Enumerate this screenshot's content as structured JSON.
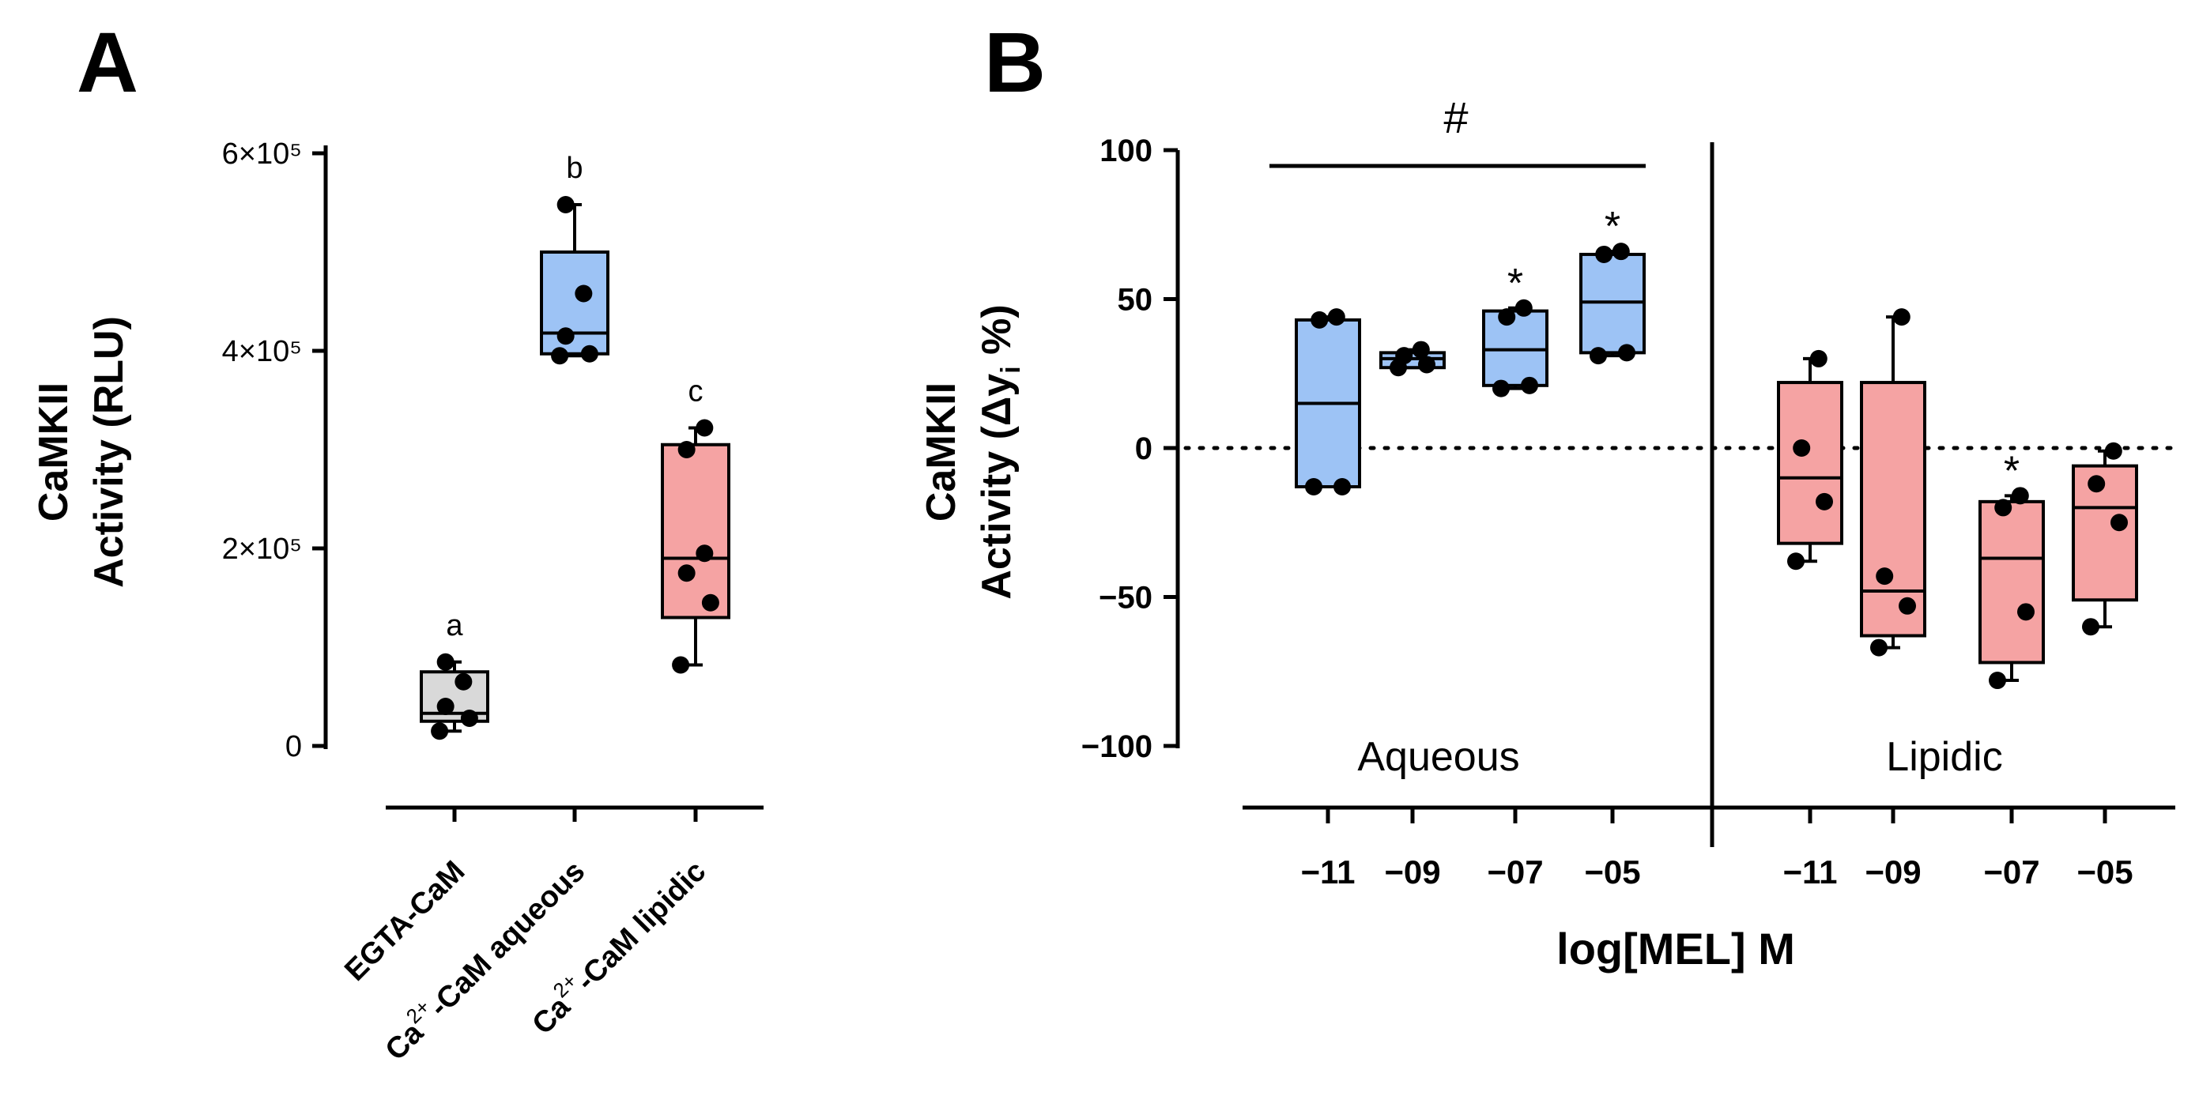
{
  "colors": {
    "gray": "#d9d9d9",
    "blue": "#9dc3f5",
    "red": "#f5a3a3",
    "ink": "#000000"
  },
  "chart_data": [
    {
      "panel": "A",
      "type": "box",
      "ylabel_line1": "CaMKII",
      "ylabel_line2": "Activity (RLU)",
      "ylim": [
        0,
        600000
      ],
      "yticks": [
        {
          "v": 0,
          "text": "0"
        },
        {
          "v": 200000,
          "text": "2×10⁵"
        },
        {
          "v": 400000,
          "text": "4×10⁵"
        },
        {
          "v": 600000,
          "text": "6×10⁵"
        }
      ],
      "categories": [
        {
          "label": "EGTA-CaM",
          "label_pre": "",
          "label_sup": "",
          "label_post": ""
        },
        {
          "label": "",
          "label_pre": "Ca",
          "label_sup": "2+",
          "label_post": "-CaM aqueous"
        },
        {
          "label": "",
          "label_pre": "Ca",
          "label_sup": "2+",
          "label_post": "-CaM lipidic"
        }
      ],
      "groups": [
        {
          "color": "gray",
          "letter": "a",
          "min": 15000,
          "q1": 25000,
          "median": 33000,
          "q3": 75000,
          "max": 85000,
          "points": [
            15000,
            28000,
            40000,
            65000,
            85000
          ]
        },
        {
          "color": "blue",
          "letter": "b",
          "min": 395000,
          "q1": 397000,
          "median": 418000,
          "q3": 500000,
          "max": 548000,
          "points": [
            395000,
            397000,
            415000,
            458000,
            548000
          ]
        },
        {
          "color": "red",
          "letter": "c",
          "min": 82000,
          "q1": 130000,
          "median": 190000,
          "q3": 305000,
          "max": 322000,
          "points": [
            82000,
            145000,
            175000,
            195000,
            300000,
            322000
          ]
        }
      ]
    },
    {
      "panel": "B",
      "type": "box",
      "ylabel_line1": "CaMKII",
      "ylabel_line2_pre": "Activity (Δy",
      "ylabel_line2_sub": "i",
      "ylabel_line2_post": " %)",
      "xlabel": "log[MEL] M",
      "ylim": [
        -100,
        100
      ],
      "yticks": [
        {
          "v": 100,
          "text": "100"
        },
        {
          "v": 50,
          "text": "50"
        },
        {
          "v": 0,
          "text": "0"
        },
        {
          "v": -50,
          "text": "−50"
        },
        {
          "v": -100,
          "text": "−100"
        }
      ],
      "section_labels": [
        "Aqueous",
        "Lipidic"
      ],
      "significance_bar_label": "#",
      "x_tick_labels": [
        "−11",
        "−09",
        "−07",
        "−05",
        "−11",
        "−09",
        "−07",
        "−05"
      ],
      "groups": [
        {
          "section": "Aqueous",
          "x": "-11",
          "color": "blue",
          "star": "",
          "min": -13,
          "q1": -13,
          "median": 15,
          "q3": 43,
          "max": 44,
          "points": [
            -13,
            -13,
            43,
            44
          ]
        },
        {
          "section": "Aqueous",
          "x": "-09",
          "color": "blue",
          "star": "",
          "min": 27,
          "q1": 27,
          "median": 30,
          "q3": 32,
          "max": 33,
          "points": [
            27,
            28,
            31,
            33
          ]
        },
        {
          "section": "Aqueous",
          "x": "-07",
          "color": "blue",
          "star": "*",
          "min": 20,
          "q1": 21,
          "median": 33,
          "q3": 46,
          "max": 47,
          "points": [
            20,
            21,
            44,
            47
          ]
        },
        {
          "section": "Aqueous",
          "x": "-05",
          "color": "blue",
          "star": "*",
          "min": 31,
          "q1": 32,
          "median": 49,
          "q3": 65,
          "max": 66,
          "points": [
            31,
            32,
            65,
            66
          ]
        },
        {
          "section": "Lipidic",
          "x": "-11",
          "color": "red",
          "star": "",
          "min": -38,
          "q1": -32,
          "median": -10,
          "q3": 22,
          "max": 30,
          "points": [
            -38,
            -18,
            0,
            30
          ]
        },
        {
          "section": "Lipidic",
          "x": "-09",
          "color": "red",
          "star": "",
          "min": -67,
          "q1": -63,
          "median": -48,
          "q3": 22,
          "max": 44,
          "points": [
            -67,
            -53,
            -43,
            44
          ]
        },
        {
          "section": "Lipidic",
          "x": "-07",
          "color": "red",
          "star": "*",
          "min": -78,
          "q1": -72,
          "median": -37,
          "q3": -18,
          "max": -16,
          "points": [
            -78,
            -55,
            -20,
            -16
          ]
        },
        {
          "section": "Lipidic",
          "x": "-05",
          "color": "red",
          "star": "",
          "min": -60,
          "q1": -51,
          "median": -20,
          "q3": -6,
          "max": -1,
          "points": [
            -60,
            -25,
            -12,
            -1
          ]
        }
      ]
    }
  ],
  "panel_letters": [
    "A",
    "B"
  ]
}
